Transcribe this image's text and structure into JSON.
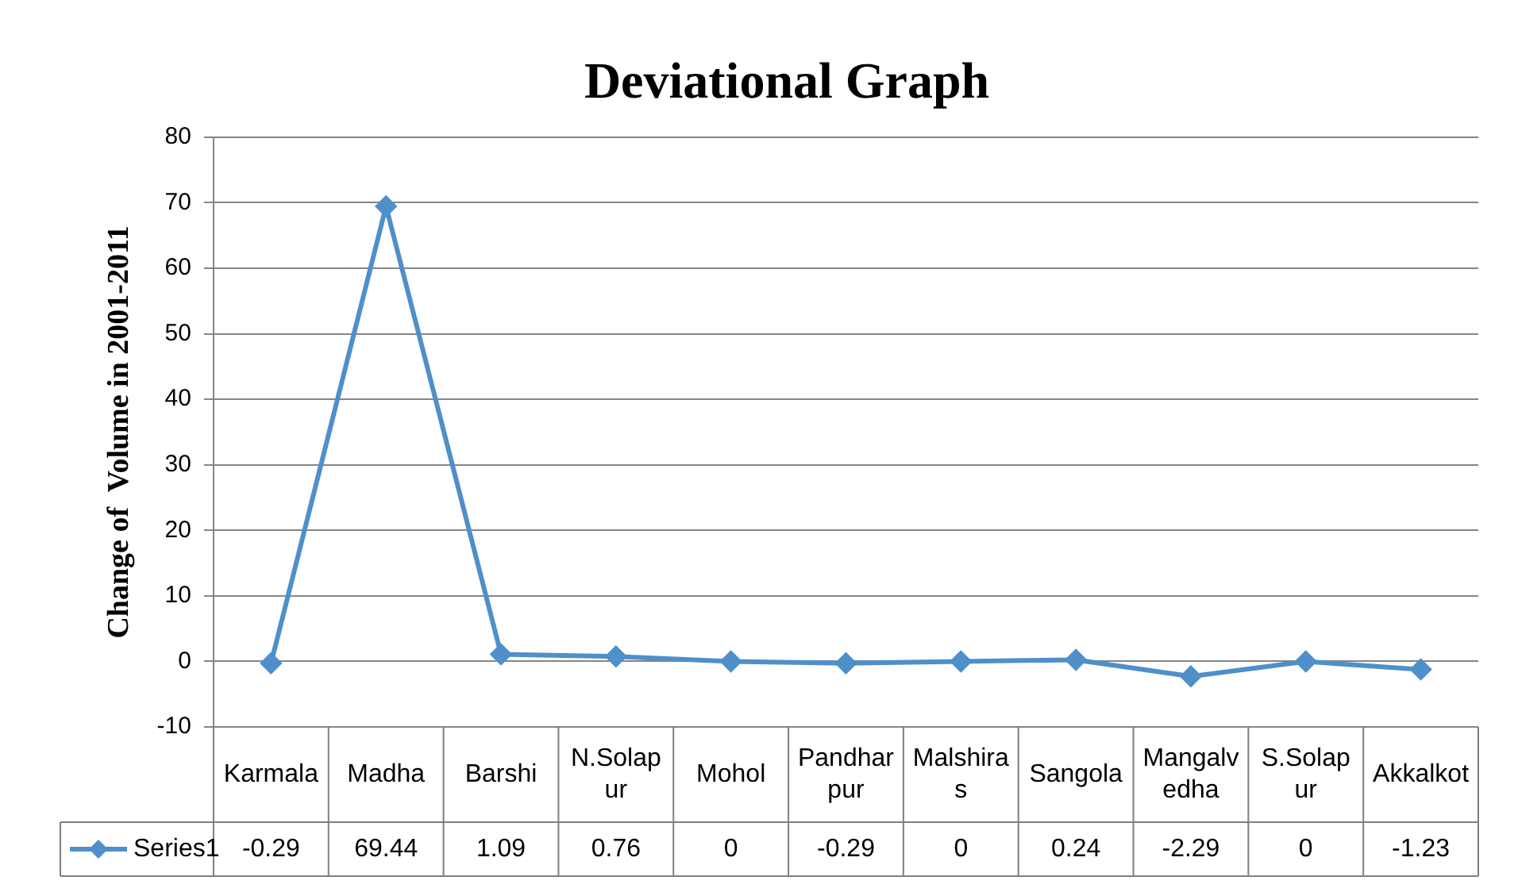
{
  "chart_data": {
    "type": "line",
    "title": "Deviational Graph",
    "ylabel": "Change of  Volume in 2001-2011",
    "categories": [
      "Karmala",
      "Madha",
      "Barshi",
      "N.Solapur",
      "Mohol",
      "Pandharpur",
      "Malshiras",
      "Sangola",
      "Mangalvedha",
      "S.Solapur",
      "Akkalkot"
    ],
    "series": [
      {
        "name": "Series1",
        "color": "#4f8fca",
        "values": [
          -0.29,
          69.44,
          1.09,
          0.76,
          0,
          -0.29,
          0,
          0.24,
          -2.29,
          0,
          -1.23
        ]
      }
    ],
    "ylim": [
      -10,
      80
    ],
    "yticks": [
      -10,
      0,
      10,
      20,
      30,
      40,
      50,
      60,
      70,
      80
    ],
    "grid": "y",
    "legend": "bottom",
    "marker": "diamond",
    "line_style": "solid",
    "data_labels": true
  }
}
